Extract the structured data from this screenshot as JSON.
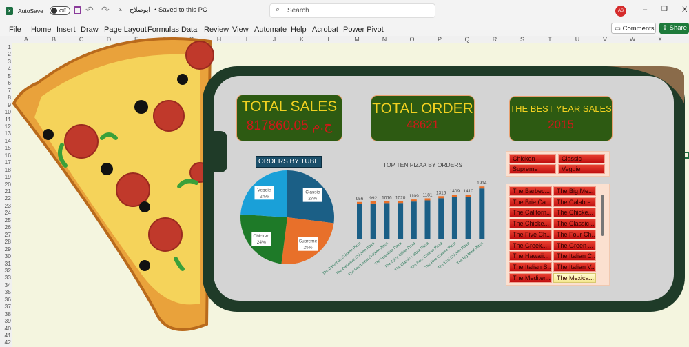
{
  "titlebar": {
    "autosave_label": "AutoSave",
    "autosave_state": "Off",
    "filename": "ابوصلاح",
    "save_status": "• Saved to this PC",
    "search_placeholder": "Search",
    "avatar_initials": "AS"
  },
  "menu": [
    "File",
    "Home",
    "Insert",
    "Draw",
    "Page Layout",
    "Formulas",
    "Data",
    "Review",
    "View",
    "Automate",
    "Help",
    "Acrobat",
    "Power Pivot"
  ],
  "actions": {
    "comments": "Comments",
    "share": "Share"
  },
  "columns": [
    "A",
    "B",
    "C",
    "D",
    "E",
    "F",
    "G",
    "H",
    "I",
    "J",
    "K",
    "L",
    "M",
    "N",
    "O",
    "P",
    "Q",
    "R",
    "S",
    "T",
    "U",
    "V",
    "W",
    "X"
  ],
  "rows": [
    "1",
    "2",
    "3",
    "4",
    "5",
    "6",
    "7",
    "8",
    "9",
    "10",
    "11",
    "12",
    "13",
    "14",
    "15",
    "16",
    "17",
    "18",
    "19",
    "20",
    "21",
    "22",
    "23",
    "24",
    "25",
    "26",
    "27",
    "28",
    "29",
    "30",
    "31",
    "32",
    "33",
    "34",
    "35",
    "36",
    "37",
    "38",
    "39",
    "40",
    "41",
    "42"
  ],
  "kpis": {
    "total_sales": {
      "title": "TOTAL SALES",
      "value": "ج.م 817860.05"
    },
    "total_order": {
      "title": "TOTAL ORDER",
      "value": "48621"
    },
    "best_year": {
      "title": "THE BEST YEAR SALES",
      "value": "2015"
    }
  },
  "colors": {
    "kpi_bg": "#2d5a12",
    "kpi_title": "#f0d020",
    "kpi_value": "#d01818",
    "bar": "#1b5f86",
    "bar_cap": "#e8702a"
  },
  "chart_data": [
    {
      "type": "pie",
      "title": "ORDERS BY TUBE",
      "categories": [
        "Classic",
        "Supreme",
        "Chicken",
        "Veggie"
      ],
      "values": [
        27,
        25,
        24,
        24
      ],
      "labels": [
        "27%",
        "25%",
        "24%",
        "24%"
      ],
      "colors": [
        "#1b5f86",
        "#e8702a",
        "#1e7a28",
        "#1aa0d8"
      ]
    },
    {
      "type": "bar",
      "title": "TOP TEN PIZAA BY ORDERS",
      "categories": [
        "The Barbecue Chicken Pizza",
        "The Barbecue Chicken Pizza",
        "The Southwest Chicken Pizza",
        "The Hawaiian Pizza",
        "The Spicy Italian Pizza",
        "The Classic Deluxe Pizza",
        "The Four Cheese Pizza",
        "The Five Cheese Pizza",
        "The Thai Chicken Pizza",
        "The Big Meat Pizza"
      ],
      "values": [
        956,
        992,
        1016,
        1020,
        1109,
        1181,
        1316,
        1409,
        1410,
        1914
      ]
    }
  ],
  "slicer_type": [
    "Chicken",
    "Classic",
    "Supreme",
    "Veggie"
  ],
  "slicer_pizza": [
    "The Barbec...",
    "The Big Me...",
    "The Brie Ca...",
    "The Calabre...",
    "The Californ...",
    "The Chicke...",
    "The Chicke...",
    "The Classic ...",
    "The Five Ch...",
    "The Four Ch...",
    "The Greek...",
    "The Green ...",
    "The Hawaii...",
    "The Italian C...",
    "The Italian S...",
    "The Italian V...",
    "The Mediter...",
    "The Mexica..."
  ],
  "slicer_pizza_selected": "The Mexica..."
}
